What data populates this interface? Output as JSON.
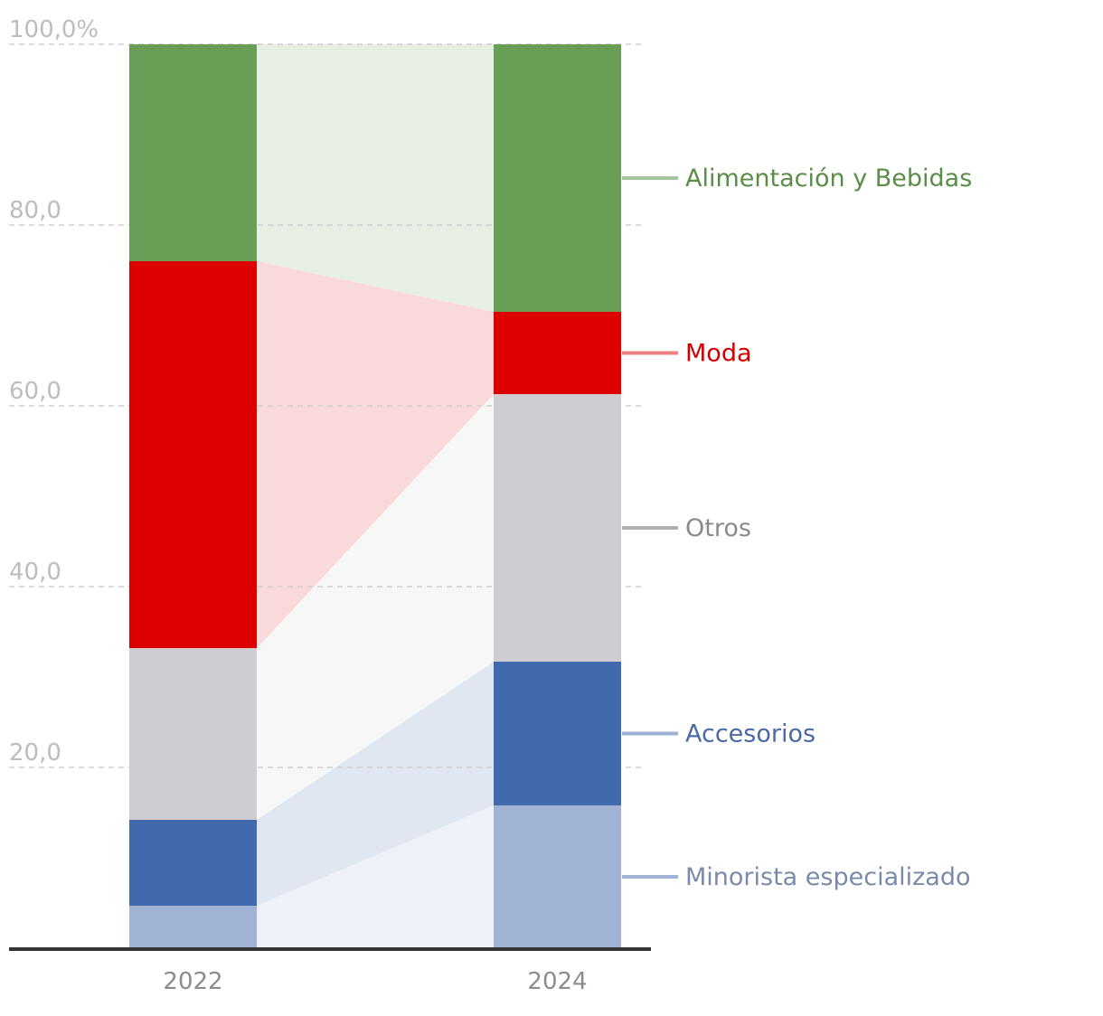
{
  "chart_data": {
    "type": "bar",
    "stacked": true,
    "categories": [
      "2022",
      "2024"
    ],
    "ylim": [
      0,
      100
    ],
    "yticks": [
      {
        "value": 20,
        "label": "20,0"
      },
      {
        "value": 40,
        "label": "40,0"
      },
      {
        "value": 60,
        "label": "60,0"
      },
      {
        "value": 80,
        "label": "80,0"
      },
      {
        "value": 100,
        "label": "100,0%"
      }
    ],
    "grid": true,
    "series": [
      {
        "name": "Minorista especializado",
        "values": [
          4.7,
          15.8
        ],
        "color": "#a0b3d4",
        "band_color": "#eef1f7",
        "label_color": "#7a8aaa",
        "connector_color": "#a0b3d4"
      },
      {
        "name": "Accesorios",
        "values": [
          9.5,
          15.9
        ],
        "color": "#4169ad",
        "band_color": "#e1e7f1",
        "label_color": "#4a6aa6",
        "connector_color": "#9fb1d2"
      },
      {
        "name": "Otros",
        "values": [
          19.0,
          29.6
        ],
        "color": "#cfcdd2",
        "band_color": "#f7f7f8",
        "label_color": "#8a8a8a",
        "connector_color": "#b0b0b0"
      },
      {
        "name": "Moda",
        "values": [
          42.8,
          9.1
        ],
        "color": "#de0000",
        "band_color": "#f9d9d9",
        "label_color": "#d40000",
        "connector_color": "#ee7f7f"
      },
      {
        "name": "Alimentación y Bebidas",
        "values": [
          24.0,
          29.6
        ],
        "color": "#699e57",
        "band_color": "#e7efe4",
        "label_color": "#5a8e48",
        "connector_color": "#a4c59a"
      }
    ]
  }
}
